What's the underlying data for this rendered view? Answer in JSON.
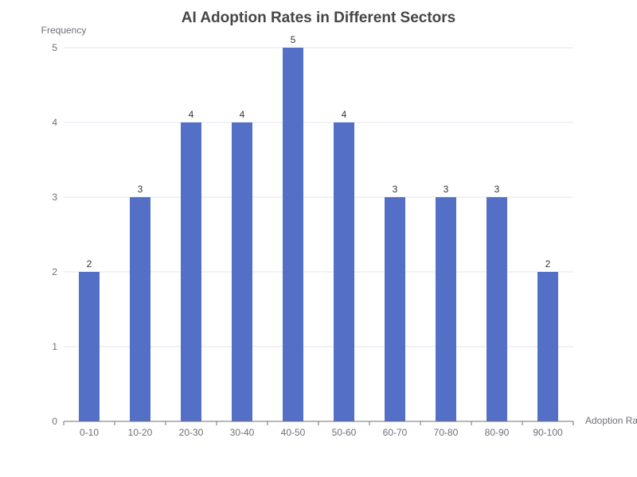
{
  "chart_data": {
    "type": "bar",
    "title": "AI Adoption Rates in Different Sectors",
    "xlabel": "Adoption Rate",
    "ylabel": "Frequency",
    "categories": [
      "0-10",
      "10-20",
      "20-30",
      "30-40",
      "40-50",
      "50-60",
      "60-70",
      "70-80",
      "80-90",
      "90-100"
    ],
    "values": [
      2,
      3,
      4,
      4,
      5,
      4,
      3,
      3,
      3,
      2
    ],
    "ylim": [
      0,
      5
    ],
    "yticks": [
      0,
      1,
      2,
      3,
      4,
      5
    ],
    "grid": true,
    "legend": "none",
    "bar_color": "#5470c6",
    "data_labels": true
  }
}
